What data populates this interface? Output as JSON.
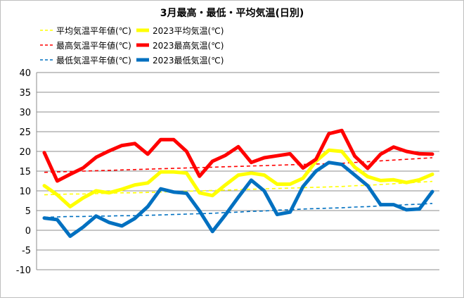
{
  "chart_data": {
    "type": "line",
    "title": "3月最高・最低・平均気温(日別)",
    "xlabel": "",
    "ylabel": "",
    "ylim": [
      -10,
      40
    ],
    "yticks": [
      40,
      35,
      30,
      25,
      20,
      15,
      10,
      5,
      0,
      -5,
      -10
    ],
    "grid": true,
    "legend_position": "top",
    "days": 31,
    "series": [
      {
        "name": "平均気温平年値(℃)",
        "style": "dashed",
        "color": "#FFFF00",
        "values": [
          9.0,
          9.1,
          9.2,
          9.2,
          9.3,
          9.4,
          9.5,
          9.5,
          9.6,
          9.7,
          9.8,
          9.9,
          10.0,
          10.1,
          10.2,
          10.3,
          10.4,
          10.5,
          10.6,
          10.7,
          10.8,
          10.9,
          11.0,
          11.1,
          11.3,
          11.4,
          11.6,
          11.8,
          12.0,
          12.2,
          12.4
        ]
      },
      {
        "name": "2023平均気温(℃)",
        "style": "solid",
        "color": "#FFFF00",
        "values": [
          11.3,
          9.0,
          6.0,
          8.2,
          10.0,
          9.5,
          10.4,
          11.5,
          12.0,
          14.8,
          14.8,
          14.5,
          9.5,
          8.8,
          11.5,
          14.0,
          14.5,
          14.0,
          11.7,
          11.7,
          13.2,
          17.5,
          20.3,
          20.0,
          16.0,
          13.6,
          12.6,
          12.8,
          12.1,
          12.8,
          14.2
        ]
      },
      {
        "name": "最高気温平年値(℃)",
        "style": "dashed",
        "color": "#FF0000",
        "values": [
          14.7,
          14.8,
          14.9,
          15.0,
          15.1,
          15.2,
          15.3,
          15.4,
          15.5,
          15.6,
          15.7,
          15.8,
          15.9,
          16.0,
          16.1,
          16.2,
          16.3,
          16.4,
          16.5,
          16.6,
          16.7,
          16.8,
          16.9,
          17.0,
          17.2,
          17.4,
          17.6,
          17.8,
          18.0,
          18.2,
          18.4
        ]
      },
      {
        "name": "2023最高気温(℃)",
        "style": "solid",
        "color": "#FF0000",
        "values": [
          19.7,
          12.5,
          14.2,
          15.8,
          18.5,
          20.1,
          21.5,
          22.0,
          19.3,
          23.0,
          23.0,
          20.0,
          13.7,
          17.5,
          19.0,
          21.2,
          17.2,
          18.4,
          18.9,
          19.4,
          15.8,
          18.0,
          24.5,
          25.3,
          18.8,
          15.7,
          19.3,
          21.1,
          20.0,
          19.4,
          19.3
        ]
      },
      {
        "name": "最低気温平年値(℃)",
        "style": "dashed",
        "color": "#0070C0",
        "values": [
          3.3,
          3.4,
          3.5,
          3.5,
          3.6,
          3.6,
          3.7,
          3.7,
          3.8,
          3.9,
          4.0,
          4.1,
          4.2,
          4.3,
          4.5,
          4.6,
          4.8,
          4.9,
          5.1,
          5.2,
          5.4,
          5.5,
          5.6,
          5.7,
          5.9,
          6.0,
          6.2,
          6.3,
          6.5,
          6.6,
          6.8
        ]
      },
      {
        "name": "2023最低気温(℃)",
        "style": "solid",
        "color": "#0070C0",
        "values": [
          3.1,
          2.7,
          -1.5,
          0.8,
          3.6,
          2.0,
          1.1,
          3.0,
          6.0,
          10.5,
          9.7,
          9.4,
          4.9,
          -0.3,
          3.9,
          8.4,
          12.7,
          10.0,
          4.0,
          4.6,
          11.1,
          15.0,
          17.2,
          16.7,
          14.0,
          11.3,
          6.5,
          6.5,
          5.2,
          5.4,
          9.8
        ]
      }
    ]
  }
}
